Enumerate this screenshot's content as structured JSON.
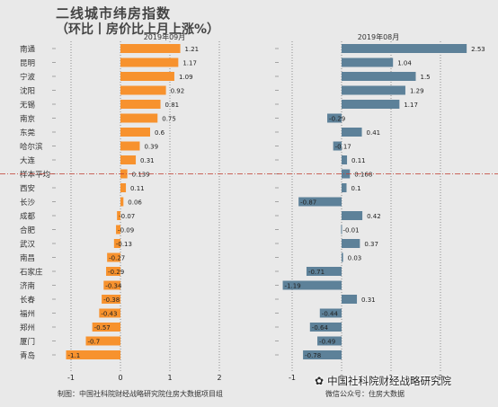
{
  "title": "二线城市纬房指数",
  "subtitle": "（环比丨房价比上月上涨%）",
  "footer": {
    "left": "制图：中国社科院财经战略研究院住房大数据项目组",
    "right": "微信公众号：住房大数据",
    "watermark": "中国社科院财经战略研究院",
    "watermark_icon": "wechat-icon"
  },
  "colors": {
    "left_bars": "#f7922e",
    "right_bars": "#5d8199",
    "avg_line": "#c0392b",
    "background": "#e9e9e9"
  },
  "chart_data": [
    {
      "type": "bar",
      "orientation": "horizontal",
      "title": "2019年09月",
      "categories": [
        "南通",
        "昆明",
        "宁波",
        "沈阳",
        "无锡",
        "南京",
        "东莞",
        "哈尔滨",
        "大连",
        "样本平均",
        "西安",
        "长沙",
        "成都",
        "合肥",
        "武汉",
        "南昌",
        "石家庄",
        "济南",
        "长春",
        "福州",
        "郑州",
        "厦门",
        "青岛"
      ],
      "values": [
        1.21,
        1.17,
        1.09,
        0.92,
        0.81,
        0.75,
        0.6,
        0.39,
        0.31,
        0.139,
        0.11,
        0.06,
        -0.07,
        -0.09,
        -0.13,
        -0.27,
        -0.29,
        -0.34,
        -0.38,
        -0.43,
        -0.57,
        -0.7,
        -1.1
      ],
      "xlim": [
        -1.2,
        2.8
      ],
      "xticks": [
        -1,
        0,
        1,
        2
      ],
      "grid": "vertical dotted"
    },
    {
      "type": "bar",
      "orientation": "horizontal",
      "title": "2019年08月",
      "categories": [
        "南通",
        "昆明",
        "宁波",
        "沈阳",
        "无锡",
        "南京",
        "东莞",
        "哈尔滨",
        "大连",
        "样本平均",
        "西安",
        "长沙",
        "成都",
        "合肥",
        "武汉",
        "南昌",
        "石家庄",
        "济南",
        "长春",
        "福州",
        "郑州",
        "厦门",
        "青岛"
      ],
      "values": [
        2.53,
        1.04,
        1.5,
        1.29,
        1.17,
        -0.29,
        0.41,
        -0.17,
        0.11,
        0.168,
        0.1,
        -0.87,
        0.42,
        -0.01,
        0.37,
        0.03,
        -0.71,
        -1.19,
        0.31,
        -0.44,
        -0.64,
        -0.49,
        -0.78
      ],
      "xlim": [
        -1.4,
        2.9
      ],
      "xticks": [
        -1,
        0,
        1,
        2
      ],
      "grid": "vertical dotted"
    }
  ]
}
